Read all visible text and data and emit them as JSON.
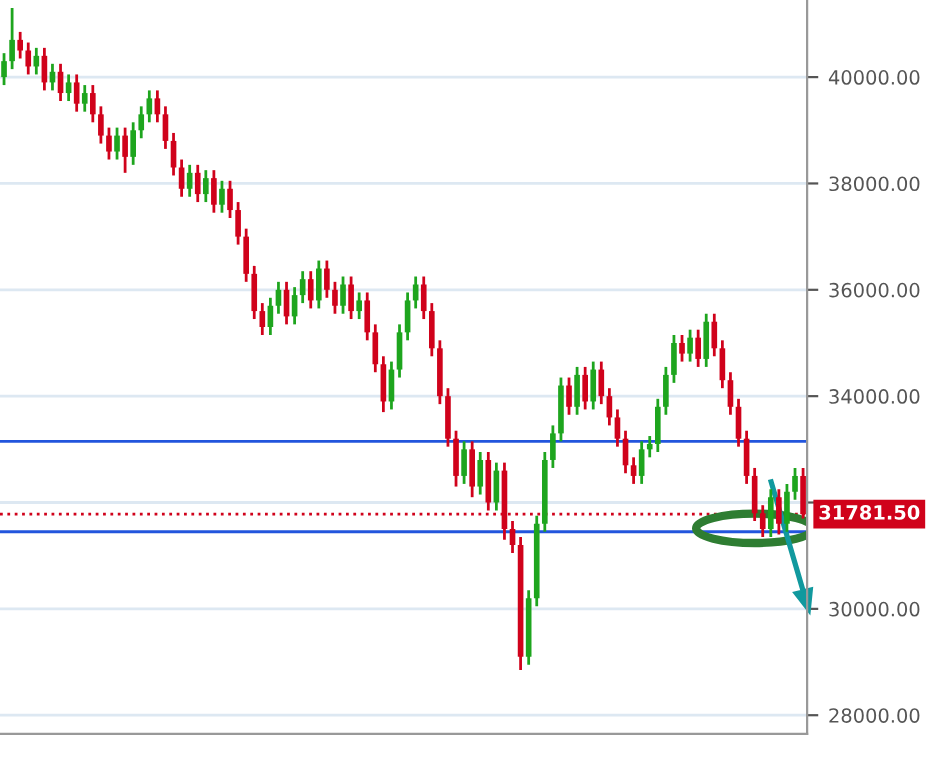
{
  "chart_data": {
    "type": "candlestick",
    "categories": [
      null,
      null,
      null,
      null,
      null,
      null,
      null,
      null,
      null,
      null,
      null,
      null,
      null,
      null,
      null,
      null,
      null,
      null,
      null,
      null,
      null,
      null,
      null,
      null,
      null,
      null,
      null,
      null,
      null,
      null,
      null,
      null,
      null,
      null,
      null,
      null,
      null,
      null,
      null,
      null,
      null,
      null,
      null,
      null,
      null,
      null,
      null,
      null,
      null,
      null,
      null,
      null,
      null,
      null,
      null,
      null,
      null,
      null,
      null,
      null,
      null,
      null,
      null,
      null,
      null,
      null,
      null,
      null,
      null,
      null,
      null,
      null,
      null,
      null,
      null,
      null,
      null,
      null,
      null,
      null,
      null,
      null,
      null,
      null,
      null,
      null,
      null,
      null,
      null,
      null,
      null,
      null,
      null,
      null,
      null,
      null,
      null,
      null,
      null,
      null
    ],
    "colors": [
      "#1ea51e",
      "#1ea51e",
      "#d0021b",
      "#d0021b",
      "#1ea51e",
      "#d0021b",
      "#1ea51e",
      "#d0021b",
      "#1ea51e",
      "#d0021b",
      "#1ea51e",
      "#d0021b",
      "#d0021b",
      "#d0021b",
      "#1ea51e",
      "#d0021b",
      "#1ea51e",
      "#1ea51e",
      "#1ea51e",
      "#d0021b",
      "#d0021b",
      "#d0021b",
      "#d0021b",
      "#1ea51e",
      "#d0021b",
      "#1ea51e",
      "#d0021b",
      "#1ea51e",
      "#d0021b",
      "#d0021b",
      "#d0021b",
      "#d0021b",
      "#d0021b",
      "#1ea51e",
      "#1ea51e",
      "#d0021b",
      "#1ea51e",
      "#1ea51e",
      "#d0021b",
      "#1ea51e",
      "#d0021b",
      "#d0021b",
      "#1ea51e",
      "#d0021b",
      "#1ea51e",
      "#d0021b",
      "#d0021b",
      "#d0021b",
      "#1ea51e",
      "#1ea51e",
      "#1ea51e",
      "#1ea51e",
      "#d0021b",
      "#d0021b",
      "#d0021b",
      "#d0021b",
      "#d0021b",
      "#1ea51e",
      "#d0021b",
      "#1ea51e",
      "#d0021b",
      "#1ea51e",
      "#d0021b",
      "#d0021b",
      "#d0021b",
      "#1ea51e",
      "#1ea51e",
      "#1ea51e",
      "#1ea51e",
      "#1ea51e",
      "#d0021b",
      "#1ea51e",
      "#d0021b",
      "#1ea51e",
      "#d0021b",
      "#d0021b",
      "#d0021b",
      "#d0021b",
      "#d0021b",
      "#1ea51e",
      "#1ea51e",
      "#1ea51e",
      "#1ea51e",
      "#1ea51e",
      "#d0021b",
      "#1ea51e",
      "#d0021b",
      "#1ea51e",
      "#d0021b",
      "#d0021b",
      "#d0021b",
      "#d0021b",
      "#d0021b",
      "#d0021b",
      "#d0021b",
      "#1ea51e",
      "#d0021b",
      "#1ea51e",
      "#1ea51e",
      "#d0021b"
    ],
    "ohlc": [
      [
        40000,
        40450,
        39850,
        40300
      ],
      [
        40300,
        41300,
        40150,
        40700
      ],
      [
        40700,
        40850,
        40350,
        40500
      ],
      [
        40500,
        40650,
        40050,
        40200
      ],
      [
        40200,
        40550,
        40050,
        40400
      ],
      [
        40400,
        40550,
        39750,
        39900
      ],
      [
        39900,
        40250,
        39750,
        40100
      ],
      [
        40100,
        40250,
        39550,
        39700
      ],
      [
        39700,
        40050,
        39550,
        39900
      ],
      [
        39900,
        40050,
        39350,
        39500
      ],
      [
        39500,
        39850,
        39350,
        39700
      ],
      [
        39700,
        39850,
        39150,
        39300
      ],
      [
        39300,
        39450,
        38750,
        38900
      ],
      [
        38900,
        39050,
        38450,
        38600
      ],
      [
        38600,
        39050,
        38450,
        38900
      ],
      [
        38900,
        39050,
        38200,
        38500
      ],
      [
        38500,
        39150,
        38350,
        39000
      ],
      [
        39000,
        39450,
        38850,
        39300
      ],
      [
        39300,
        39750,
        39150,
        39600
      ],
      [
        39600,
        39750,
        39150,
        39300
      ],
      [
        39300,
        39450,
        38650,
        38800
      ],
      [
        38800,
        38950,
        38150,
        38300
      ],
      [
        38300,
        38450,
        37750,
        37900
      ],
      [
        37900,
        38350,
        37750,
        38200
      ],
      [
        38200,
        38350,
        37650,
        37800
      ],
      [
        37800,
        38250,
        37650,
        38100
      ],
      [
        38100,
        38250,
        37450,
        37600
      ],
      [
        37600,
        38050,
        37450,
        37900
      ],
      [
        37900,
        38050,
        37350,
        37500
      ],
      [
        37500,
        37650,
        36850,
        37000
      ],
      [
        37000,
        37150,
        36150,
        36300
      ],
      [
        36300,
        36450,
        35450,
        35600
      ],
      [
        35600,
        35750,
        35150,
        35300
      ],
      [
        35300,
        35850,
        35150,
        35700
      ],
      [
        35700,
        36150,
        35550,
        36000
      ],
      [
        36000,
        36150,
        35350,
        35500
      ],
      [
        35500,
        36050,
        35350,
        35900
      ],
      [
        35900,
        36350,
        35750,
        36200
      ],
      [
        36200,
        36350,
        35650,
        35800
      ],
      [
        35800,
        36550,
        35650,
        36400
      ],
      [
        36400,
        36550,
        35850,
        36000
      ],
      [
        36000,
        36150,
        35550,
        35700
      ],
      [
        35700,
        36250,
        35550,
        36100
      ],
      [
        36100,
        36250,
        35450,
        35600
      ],
      [
        35600,
        35950,
        35450,
        35800
      ],
      [
        35800,
        35950,
        35050,
        35200
      ],
      [
        35200,
        35350,
        34450,
        34600
      ],
      [
        34600,
        34750,
        33700,
        33900
      ],
      [
        33900,
        34650,
        33750,
        34500
      ],
      [
        34500,
        35350,
        34350,
        35200
      ],
      [
        35200,
        35950,
        35050,
        35800
      ],
      [
        35800,
        36250,
        35650,
        36100
      ],
      [
        36100,
        36250,
        35450,
        35600
      ],
      [
        35600,
        35750,
        34750,
        34900
      ],
      [
        34900,
        35050,
        33850,
        34000
      ],
      [
        34000,
        34150,
        33050,
        33200
      ],
      [
        33200,
        33350,
        32300,
        32500
      ],
      [
        32500,
        33150,
        32350,
        33000
      ],
      [
        33000,
        33150,
        32100,
        32300
      ],
      [
        32300,
        32950,
        32150,
        32800
      ],
      [
        32800,
        32950,
        31850,
        32000
      ],
      [
        32000,
        32750,
        31850,
        32600
      ],
      [
        32600,
        32750,
        31300,
        31500
      ],
      [
        31500,
        31650,
        31050,
        31200
      ],
      [
        31200,
        31350,
        28850,
        29100
      ],
      [
        29100,
        30350,
        28950,
        30200
      ],
      [
        30200,
        31750,
        30050,
        31600
      ],
      [
        31600,
        32950,
        31450,
        32800
      ],
      [
        32800,
        33450,
        32650,
        33300
      ],
      [
        33300,
        34350,
        33150,
        34200
      ],
      [
        34200,
        34350,
        33650,
        33800
      ],
      [
        33800,
        34550,
        33650,
        34400
      ],
      [
        34400,
        34550,
        33750,
        33900
      ],
      [
        33900,
        34650,
        33750,
        34500
      ],
      [
        34500,
        34650,
        33850,
        34000
      ],
      [
        34000,
        34150,
        33450,
        33600
      ],
      [
        33600,
        33750,
        33050,
        33200
      ],
      [
        33200,
        33350,
        32550,
        32700
      ],
      [
        32700,
        32850,
        32350,
        32500
      ],
      [
        32500,
        33150,
        32350,
        33000
      ],
      [
        33000,
        33250,
        32850,
        33100
      ],
      [
        33100,
        33950,
        32950,
        33800
      ],
      [
        33800,
        34550,
        33650,
        34400
      ],
      [
        34400,
        35150,
        34250,
        35000
      ],
      [
        35000,
        35150,
        34650,
        34800
      ],
      [
        34800,
        35250,
        34650,
        35100
      ],
      [
        35100,
        35250,
        34550,
        34700
      ],
      [
        34700,
        35550,
        34550,
        35400
      ],
      [
        35400,
        35550,
        34750,
        34900
      ],
      [
        34900,
        35050,
        34150,
        34300
      ],
      [
        34300,
        34450,
        33650,
        33800
      ],
      [
        33800,
        33950,
        33050,
        33200
      ],
      [
        33200,
        33350,
        32350,
        32500
      ],
      [
        32500,
        32650,
        31650,
        31800
      ],
      [
        31800,
        31950,
        31350,
        31500
      ],
      [
        31500,
        32250,
        31350,
        32100
      ],
      [
        32100,
        32250,
        31400,
        31600
      ],
      [
        31600,
        32350,
        31450,
        32200
      ],
      [
        32200,
        32650,
        32050,
        32500
      ],
      [
        32500,
        32650,
        31700,
        31781.5
      ]
    ],
    "ylim": [
      27650,
      41450
    ],
    "yticks": [
      {
        "value": 28000,
        "label": "28000.00"
      },
      {
        "value": 30000,
        "label": "30000.00"
      },
      {
        "value": 32000,
        "label": null
      },
      {
        "value": 34000,
        "label": "34000.00"
      },
      {
        "value": 36000,
        "label": "36000.00"
      },
      {
        "value": 38000,
        "label": "38000.00"
      },
      {
        "value": 40000,
        "label": "40000.00"
      }
    ],
    "grid": "y",
    "ref_lines": [
      {
        "axis": "y",
        "value": 33150,
        "color": "#2255dd",
        "line_style": "solid"
      },
      {
        "axis": "y",
        "value": 31450,
        "color": "#2255dd",
        "line_style": "solid"
      },
      {
        "axis": "y",
        "value": 31781.5,
        "label": "31781.50",
        "color": "#d0021b",
        "line_style": "dotted"
      }
    ]
  }
}
